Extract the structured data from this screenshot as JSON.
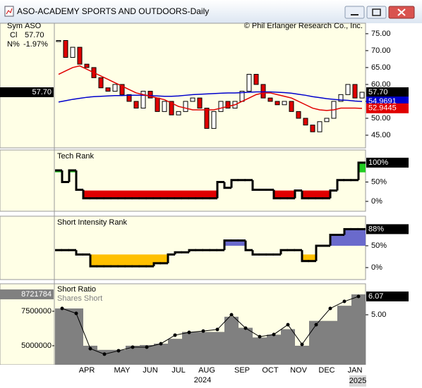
{
  "window_title": "ASO-ACADEMY SPORTS AND OUTDOORS-Daily",
  "info": {
    "sym_label": "Sym",
    "sym": "ASO",
    "close_label": "Cl",
    "close": "57.70",
    "change_label": "N%",
    "change": "-1.97%"
  },
  "copyright": "© Phil Erlanger Research Co., Inc.",
  "years": [
    "2024",
    "2025"
  ],
  "chart_data": [
    {
      "type": "candlestick",
      "categories": [
        null,
        null,
        null,
        null,
        "APR",
        null,
        null,
        null,
        null,
        "MAY",
        null,
        null,
        null,
        "JUN",
        null,
        null,
        null,
        "JUL",
        null,
        null,
        null,
        "AUG",
        null,
        null,
        null,
        null,
        "SEP",
        null,
        null,
        null,
        "OCT",
        null,
        null,
        null,
        "NOV",
        null,
        null,
        null,
        "DEC",
        null,
        null,
        null,
        "JAN",
        null
      ],
      "series": [
        {
          "color": "#000000",
          "up_color": "#ffffff",
          "down_color": "#e00000",
          "last_label": "57.70",
          "values": [
            73,
            68,
            71,
            66,
            65,
            62,
            59,
            58,
            60,
            57,
            55,
            53,
            58,
            56,
            52,
            55,
            51,
            52,
            55,
            56,
            53,
            47,
            52,
            55,
            53,
            55,
            58,
            63,
            60,
            56,
            55,
            54,
            55,
            52,
            50,
            48,
            46,
            49,
            50,
            55,
            57,
            60,
            56,
            57.7
          ]
        },
        {
          "color": "#0000cc",
          "last_label": "54.9691",
          "values": [
            54.8,
            55.2,
            55.6,
            55.9,
            56.2,
            56.4,
            56.5,
            56.6,
            56.7,
            56.7,
            56.8,
            56.8,
            56.8,
            56.7,
            56.6,
            56.5,
            56.5,
            56.6,
            56.8,
            57,
            57.1,
            57.2,
            57.3,
            57.4,
            57.5,
            57.5,
            57.6,
            57.7,
            57.8,
            57.8,
            57.8,
            57.7,
            57.6,
            57.4,
            57.1,
            56.8,
            56.4,
            56.1,
            55.8,
            55.6,
            55.4,
            55.3,
            55.1,
            54.9691
          ]
        },
        {
          "color": "#e00000",
          "last_label": "52.9445",
          "values": [
            63,
            64,
            65,
            65.5,
            64.5,
            63.5,
            62.5,
            61.5,
            60.5,
            59.5,
            58.5,
            57.5,
            57,
            56.5,
            56,
            55.5,
            54.5,
            53.5,
            53,
            52.5,
            52.5,
            52.5,
            52.5,
            53,
            53.5,
            54,
            55,
            56,
            57,
            57.5,
            57.5,
            57,
            56.5,
            56,
            55,
            54,
            53,
            52.5,
            52.3,
            52.5,
            53,
            53,
            53,
            52.9445
          ]
        }
      ],
      "ylim": [
        41.25,
        78.1
      ],
      "yticks": [
        {
          "value": 75,
          "label": "75.00"
        },
        {
          "value": 70,
          "label": "70.00"
        },
        {
          "value": 65,
          "label": "65.00"
        },
        {
          "value": 60,
          "label": "60.00"
        },
        {
          "value": 55,
          "label": "55.00"
        },
        {
          "value": 50,
          "label": "50.00"
        },
        {
          "value": 45,
          "label": "45.00"
        }
      ]
    },
    {
      "type": "step",
      "title": "Tech Rank",
      "color": "#000000",
      "last_label": "100%",
      "values": [
        80,
        50,
        80,
        30,
        8,
        8,
        8,
        8,
        8,
        8,
        8,
        8,
        8,
        8,
        8,
        8,
        8,
        8,
        8,
        8,
        8,
        8,
        8,
        50,
        35,
        55,
        55,
        55,
        30,
        30,
        30,
        8,
        8,
        8,
        28,
        8,
        8,
        8,
        8,
        28,
        55,
        55,
        55,
        100
      ],
      "upper_band": 75,
      "lower_band": 28,
      "upper_color": "#22cc22",
      "lower_color": "#e00000",
      "ylim": [
        -25.5,
        132.7
      ],
      "yticks": [
        {
          "value": 50,
          "label": "50%"
        },
        {
          "value": 0,
          "label": "0%"
        }
      ]
    },
    {
      "type": "step",
      "title": "Short Intensity Rank",
      "color": "#000000",
      "last_label": "88%",
      "values": [
        40,
        40,
        40,
        30,
        30,
        3,
        3,
        3,
        3,
        3,
        3,
        3,
        3,
        3,
        10,
        10,
        30,
        35,
        35,
        40,
        40,
        40,
        40,
        40,
        62,
        62,
        62,
        40,
        30,
        30,
        30,
        30,
        40,
        40,
        40,
        15,
        15,
        50,
        50,
        75,
        75,
        88,
        88,
        88
      ],
      "upper_band": 50,
      "lower_band": 30,
      "upper_color": "#6a6acc",
      "lower_color": "#ffc000",
      "ylim": [
        -27.4,
        117.7
      ],
      "yticks": [
        {
          "value": 50,
          "label": "50%"
        },
        {
          "value": 0,
          "label": "0%"
        }
      ]
    },
    {
      "type": "area_line",
      "title": "Short Ratio",
      "series": [
        {
          "name": "Shares Short",
          "color": "#808080",
          "last_label": "8721784",
          "values": [
            7700000,
            7700000,
            5000000,
            4700000,
            4700000,
            5000000,
            5050000,
            5150000,
            5500000,
            6000000,
            6000000,
            6000000,
            7100000,
            6300000,
            5600000,
            5800000,
            6200000,
            5000000,
            6800000,
            6800000,
            7900000,
            8721784
          ]
        },
        {
          "axis": "y2",
          "color": "#000000",
          "last_label": "6.07",
          "values": [
            5.37,
            5.08,
            3.02,
            2.7,
            2.9,
            3.11,
            3.11,
            3.31,
            3.81,
            3.97,
            4.05,
            4.14,
            5.0,
            4.22,
            3.72,
            3.85,
            4.42,
            3.27,
            4.42,
            5.37,
            5.78,
            6.07
          ]
        }
      ],
      "ylim": [
        3620000,
        9490000
      ],
      "yticks": [
        7500000,
        5000000
      ],
      "y2lim": [
        2.08,
        6.81
      ],
      "y2ticks": [
        {
          "value": 5,
          "label": "5.00"
        }
      ]
    }
  ]
}
